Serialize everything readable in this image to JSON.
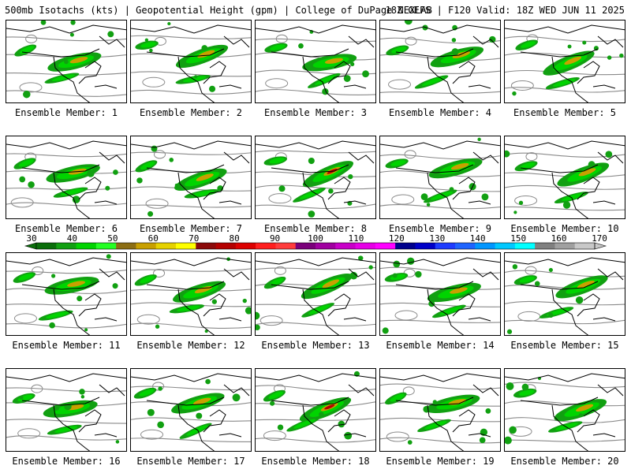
{
  "header": {
    "left": "500mb Isotachs (kts) | Geopotential Height (gpm) | College of DuPage NEXLAB",
    "right": "18Z GEFS | F120 Valid: 18Z WED JUN 11 2025"
  },
  "panels": [
    {
      "caption": "Ensemble Member: 1"
    },
    {
      "caption": "Ensemble Member: 2"
    },
    {
      "caption": "Ensemble Member: 3"
    },
    {
      "caption": "Ensemble Member: 4"
    },
    {
      "caption": "Ensemble Member: 5"
    },
    {
      "caption": "Ensemble Member: 6"
    },
    {
      "caption": "Ensemble Member: 7"
    },
    {
      "caption": "Ensemble Member: 8"
    },
    {
      "caption": "Ensemble Member: 9"
    },
    {
      "caption": "Ensemble Member: 10"
    },
    {
      "caption": "Ensemble Member: 11"
    },
    {
      "caption": "Ensemble Member: 12"
    },
    {
      "caption": "Ensemble Member: 13"
    },
    {
      "caption": "Ensemble Member: 14"
    },
    {
      "caption": "Ensemble Member: 15"
    },
    {
      "caption": "Ensemble Member: 16"
    },
    {
      "caption": "Ensemble Member: 17"
    },
    {
      "caption": "Ensemble Member: 18"
    },
    {
      "caption": "Ensemble Member: 19"
    },
    {
      "caption": "Ensemble Member: 20"
    }
  ],
  "colorbar": {
    "labels": [
      "30",
      "40",
      "50",
      "60",
      "70",
      "80",
      "90",
      "100",
      "110",
      "120",
      "130",
      "140",
      "150",
      "160",
      "170"
    ],
    "colors": [
      "#0a6e0a",
      "#11a011",
      "#00d400",
      "#24ff24",
      "#8c6e14",
      "#c8a000",
      "#e6d200",
      "#ffff00",
      "#8b0a0a",
      "#b40000",
      "#dc0000",
      "#ff1e1e",
      "#ff3c3c",
      "#7a007a",
      "#a000a0",
      "#c800c8",
      "#e600e6",
      "#ff00ff",
      "#00008c",
      "#0000c8",
      "#1e3cff",
      "#1e64ff",
      "#0096ff",
      "#00c8ff",
      "#00ffff",
      "#808080",
      "#a0a0a0",
      "#c8c8c8"
    ]
  }
}
